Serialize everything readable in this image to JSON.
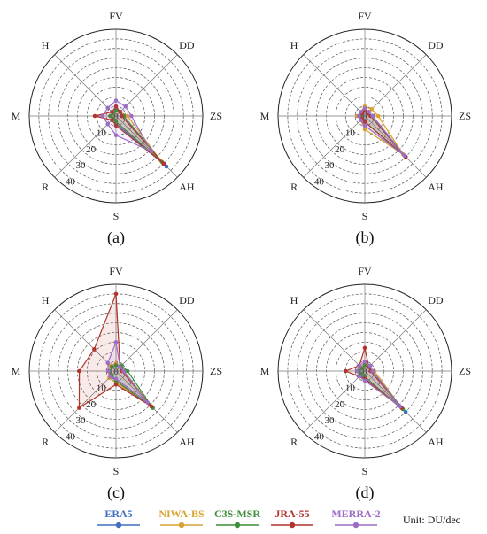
{
  "unit_label": "Unit: DU/dec",
  "chart_data": [
    {
      "type": "radar",
      "panel": "(a)",
      "axes": [
        "FV",
        "DD",
        "ZS",
        "AH",
        "S",
        "R",
        "M",
        "H"
      ],
      "ticks": [
        10,
        20,
        30,
        40
      ],
      "rlim": [
        0,
        45
      ],
      "grid": true,
      "series": [
        {
          "name": "ERA5",
          "values": [
            4,
            3,
            3,
            37,
            4,
            2,
            3,
            2
          ]
        },
        {
          "name": "NIWA-BS",
          "values": [
            3,
            3,
            6,
            33,
            3,
            2,
            3,
            2
          ]
        },
        {
          "name": "C3S-MSR",
          "values": [
            3,
            3,
            4,
            34,
            3,
            2,
            3,
            2
          ]
        },
        {
          "name": "JRA-55",
          "values": [
            5,
            3,
            3,
            35,
            5,
            3,
            11,
            3
          ]
        },
        {
          "name": "MERRA-2",
          "values": [
            8,
            7,
            8,
            26,
            10,
            6,
            7,
            6
          ]
        }
      ]
    },
    {
      "type": "radar",
      "panel": "(b)",
      "axes": [
        "FV",
        "DD",
        "ZS",
        "AH",
        "S",
        "R",
        "M",
        "H"
      ],
      "ticks": [
        10,
        20,
        30,
        40
      ],
      "rlim": [
        0,
        45
      ],
      "grid": true,
      "series": [
        {
          "name": "ERA5",
          "values": [
            3,
            3,
            4,
            30,
            3,
            2,
            3,
            2
          ]
        },
        {
          "name": "NIWA-BS",
          "values": [
            5,
            5,
            7,
            28,
            7,
            3,
            4,
            3
          ]
        },
        {
          "name": "C3S-MSR",
          "values": [
            3,
            2,
            3,
            29,
            3,
            2,
            2,
            2
          ]
        },
        {
          "name": "JRA-55",
          "values": [
            3,
            2,
            3,
            30,
            3,
            2,
            3,
            2
          ]
        },
        {
          "name": "MERRA-2",
          "values": [
            4,
            3,
            4,
            29,
            5,
            3,
            3,
            3
          ]
        }
      ]
    },
    {
      "type": "radar",
      "panel": "(c)",
      "axes": [
        "FV",
        "DD",
        "ZS",
        "AH",
        "S",
        "R",
        "M",
        "H"
      ],
      "ticks": [
        10,
        20,
        30,
        40
      ],
      "rlim": [
        0,
        45
      ],
      "grid": true,
      "series": [
        {
          "name": "ERA5",
          "values": [
            3,
            4,
            4,
            27,
            5,
            4,
            3,
            3
          ]
        },
        {
          "name": "NIWA-BS",
          "values": [
            4,
            3,
            4,
            26,
            6,
            5,
            4,
            4
          ]
        },
        {
          "name": "C3S-MSR",
          "values": [
            3,
            4,
            6,
            27,
            5,
            3,
            3,
            3
          ]
        },
        {
          "name": "JRA-55",
          "values": [
            40,
            3,
            3,
            26,
            7,
            27,
            19,
            16
          ]
        },
        {
          "name": "MERRA-2",
          "values": [
            15,
            3,
            4,
            23,
            4,
            4,
            4,
            6
          ]
        }
      ]
    },
    {
      "type": "radar",
      "panel": "(d)",
      "axes": [
        "FV",
        "DD",
        "ZS",
        "AH",
        "S",
        "R",
        "M",
        "H"
      ],
      "ticks": [
        10,
        20,
        30,
        40
      ],
      "rlim": [
        0,
        45
      ],
      "grid": true,
      "series": [
        {
          "name": "ERA5",
          "values": [
            3,
            3,
            3,
            30,
            4,
            3,
            3,
            2
          ]
        },
        {
          "name": "NIWA-BS",
          "values": [
            4,
            3,
            5,
            27,
            5,
            4,
            4,
            3
          ]
        },
        {
          "name": "C3S-MSR",
          "values": [
            3,
            3,
            4,
            28,
            3,
            2,
            3,
            2
          ]
        },
        {
          "name": "JRA-55",
          "values": [
            12,
            3,
            3,
            27,
            4,
            4,
            10,
            4
          ]
        },
        {
          "name": "MERRA-2",
          "values": [
            5,
            4,
            4,
            26,
            5,
            4,
            4,
            4
          ]
        }
      ]
    }
  ],
  "legend": [
    {
      "name": "ERA5",
      "color": "#3f6fc0"
    },
    {
      "name": "NIWA-BS",
      "color": "#d9a230"
    },
    {
      "name": "C3S-MSR",
      "color": "#3d8f3a"
    },
    {
      "name": "JRA-55",
      "color": "#b1332c"
    },
    {
      "name": "MERRA-2",
      "color": "#9c6dc7"
    }
  ]
}
